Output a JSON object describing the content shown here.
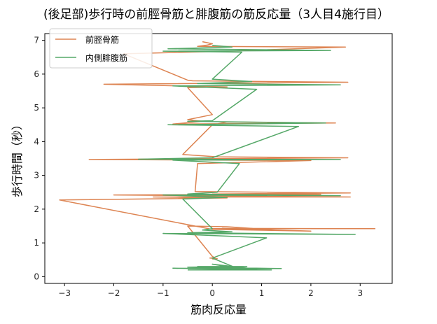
{
  "chart_data": {
    "type": "line",
    "title": "(後足部)歩行時の前脛骨筋と腓腹筋の筋反応量（3人目4施行目）",
    "xlabel": "筋肉反応量",
    "ylabel": "歩行時間（秒）",
    "xlim": [
      -3.4,
      3.65
    ],
    "ylim": [
      -0.2,
      7.2
    ],
    "xticks": [
      -3,
      -2,
      -1,
      0,
      1,
      2,
      3
    ],
    "yticks": [
      0,
      1,
      2,
      3,
      4,
      5,
      6,
      7
    ],
    "grid": false,
    "legend_position": "top-left",
    "series": [
      {
        "name": "前脛骨筋",
        "color": "#dd8452",
        "points": [
          [
            0.0,
            0.52
          ],
          [
            0.1,
            0.53
          ],
          [
            -0.05,
            0.55
          ],
          [
            0.05,
            0.56
          ],
          [
            0.0,
            0.6
          ],
          [
            -0.5,
            1.5
          ],
          [
            0.3,
            1.48
          ],
          [
            1.3,
            1.38
          ],
          [
            0.0,
            1.42
          ],
          [
            3.3,
            1.42
          ],
          [
            0.2,
            1.43
          ],
          [
            2.0,
            1.35
          ],
          [
            0.0,
            1.4
          ],
          [
            -3.1,
            2.27
          ],
          [
            0.3,
            2.33
          ],
          [
            -1.2,
            2.36
          ],
          [
            2.8,
            2.36
          ],
          [
            -2.0,
            2.42
          ],
          [
            2.2,
            2.44
          ],
          [
            0.0,
            2.45
          ],
          [
            2.8,
            2.48
          ],
          [
            -0.35,
            2.52
          ],
          [
            -0.3,
            3.35
          ],
          [
            2.0,
            3.44
          ],
          [
            -2.5,
            3.47
          ],
          [
            2.75,
            3.52
          ],
          [
            0.1,
            3.55
          ],
          [
            -0.6,
            3.62
          ],
          [
            0.0,
            4.5
          ],
          [
            0.3,
            4.58
          ],
          [
            2.5,
            4.55
          ],
          [
            -0.8,
            4.52
          ],
          [
            -0.2,
            4.6
          ],
          [
            -0.5,
            4.65
          ],
          [
            0.0,
            4.8
          ],
          [
            -0.5,
            5.6
          ],
          [
            0.3,
            5.62
          ],
          [
            -2.2,
            5.7
          ],
          [
            2.75,
            5.76
          ],
          [
            -0.4,
            5.8
          ],
          [
            -0.5,
            5.82
          ],
          [
            -1.8,
            6.6
          ],
          [
            0.3,
            6.68
          ],
          [
            2.7,
            6.8
          ],
          [
            -0.3,
            6.82
          ],
          [
            -0.1,
            6.86
          ],
          [
            0.0,
            6.9
          ],
          [
            -0.2,
            6.96
          ]
        ]
      },
      {
        "name": "内側腓腹筋",
        "color": "#55a868",
        "points": [
          [
            -0.5,
            0.2
          ],
          [
            1.2,
            0.2
          ],
          [
            -0.8,
            0.25
          ],
          [
            1.4,
            0.24
          ],
          [
            -0.5,
            0.28
          ],
          [
            0.7,
            0.3
          ],
          [
            -0.3,
            0.3
          ],
          [
            0.9,
            0.22
          ],
          [
            0.0,
            0.37
          ],
          [
            0.5,
            0.25
          ],
          [
            0.0,
            0.55
          ],
          [
            1.1,
            1.15
          ],
          [
            -1.0,
            1.28
          ],
          [
            2.9,
            1.25
          ],
          [
            -0.5,
            1.3
          ],
          [
            0.4,
            1.33
          ],
          [
            -0.2,
            1.38
          ],
          [
            0.0,
            1.42
          ],
          [
            -0.6,
            2.3
          ],
          [
            0.3,
            2.35
          ],
          [
            -1.0,
            2.42
          ],
          [
            2.6,
            2.4
          ],
          [
            -0.5,
            2.45
          ],
          [
            0.1,
            2.5
          ],
          [
            0.55,
            3.35
          ],
          [
            -0.8,
            3.45
          ],
          [
            2.6,
            3.47
          ],
          [
            -1.5,
            3.48
          ],
          [
            0.0,
            3.52
          ],
          [
            1.75,
            4.45
          ],
          [
            -0.9,
            4.5
          ],
          [
            2.3,
            4.55
          ],
          [
            -0.5,
            4.6
          ],
          [
            0.0,
            4.62
          ],
          [
            0.9,
            5.55
          ],
          [
            -0.8,
            5.65
          ],
          [
            2.6,
            5.68
          ],
          [
            -0.3,
            5.72
          ],
          [
            0.8,
            5.78
          ],
          [
            0.0,
            5.85
          ],
          [
            0.6,
            6.65
          ],
          [
            -1.0,
            6.68
          ],
          [
            2.4,
            6.7
          ],
          [
            -0.9,
            6.75
          ],
          [
            0.4,
            6.8
          ],
          [
            0.0,
            6.85
          ]
        ]
      }
    ]
  }
}
